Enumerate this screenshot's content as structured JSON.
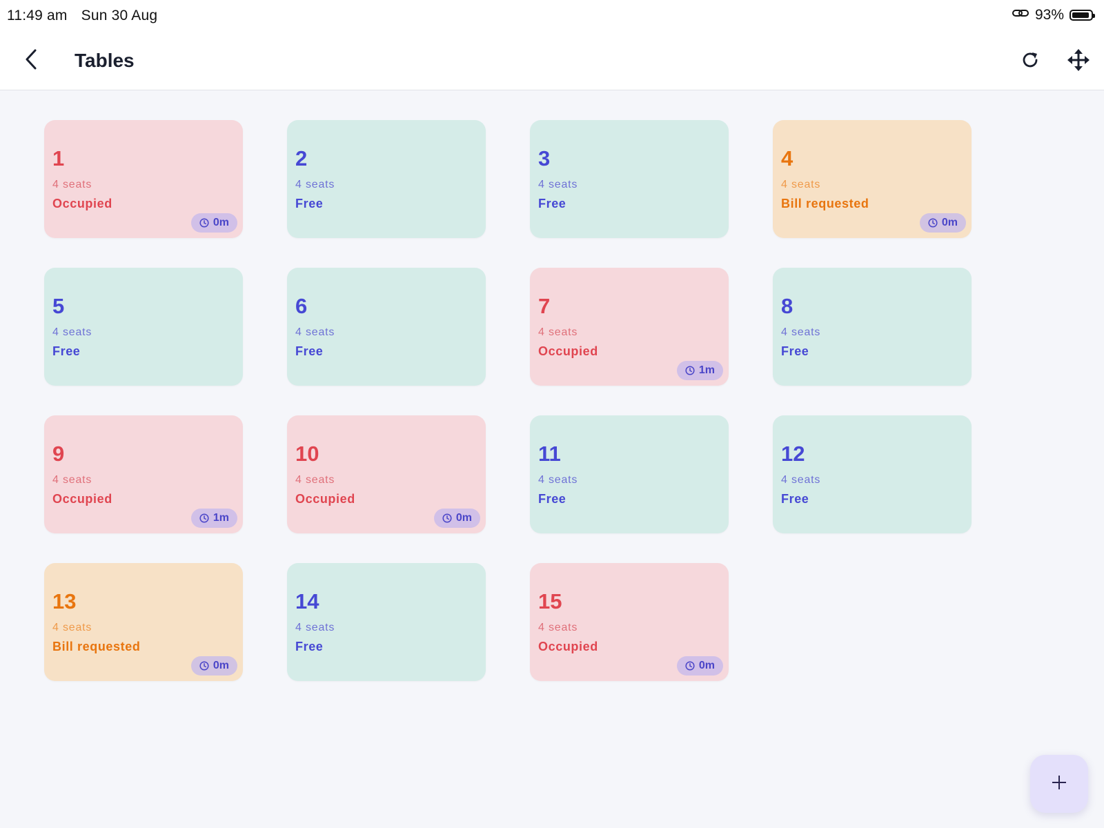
{
  "status_bar": {
    "time": "11:49 am",
    "date": "Sun 30 Aug",
    "battery": "93%",
    "battery_level": 0.93,
    "link_icon": "link-icon"
  },
  "header": {
    "title": "Tables",
    "back_icon": "chevron-left-icon",
    "refresh_icon": "refresh-icon",
    "move_icon": "move-arrows-icon"
  },
  "colors": {
    "occupied_bg": "#f6d8dc",
    "occupied_text": "#e04550",
    "free_bg": "#d5ece8",
    "free_text": "#4648d4",
    "bill_bg": "#f7e1c6",
    "bill_text": "#e8750f",
    "timer_bg": "#d2c8f0",
    "timer_text": "#4a45c8",
    "fab_bg": "#e4e0fb"
  },
  "tables": [
    {
      "number": "1",
      "seats": "4 seats",
      "status": "Occupied",
      "kind": "occupied",
      "timer": "0m"
    },
    {
      "number": "2",
      "seats": "4 seats",
      "status": "Free",
      "kind": "free",
      "timer": null
    },
    {
      "number": "3",
      "seats": "4 seats",
      "status": "Free",
      "kind": "free",
      "timer": null
    },
    {
      "number": "4",
      "seats": "4 seats",
      "status": "Bill requested",
      "kind": "bill",
      "timer": "0m"
    },
    {
      "number": "5",
      "seats": "4 seats",
      "status": "Free",
      "kind": "free",
      "timer": null
    },
    {
      "number": "6",
      "seats": "4 seats",
      "status": "Free",
      "kind": "free",
      "timer": null
    },
    {
      "number": "7",
      "seats": "4 seats",
      "status": "Occupied",
      "kind": "occupied",
      "timer": "1m"
    },
    {
      "number": "8",
      "seats": "4 seats",
      "status": "Free",
      "kind": "free",
      "timer": null
    },
    {
      "number": "9",
      "seats": "4 seats",
      "status": "Occupied",
      "kind": "occupied",
      "timer": "1m"
    },
    {
      "number": "10",
      "seats": "4 seats",
      "status": "Occupied",
      "kind": "occupied",
      "timer": "0m"
    },
    {
      "number": "11",
      "seats": "4 seats",
      "status": "Free",
      "kind": "free",
      "timer": null
    },
    {
      "number": "12",
      "seats": "4 seats",
      "status": "Free",
      "kind": "free",
      "timer": null
    },
    {
      "number": "13",
      "seats": "4 seats",
      "status": "Bill requested",
      "kind": "bill",
      "timer": "0m"
    },
    {
      "number": "14",
      "seats": "4 seats",
      "status": "Free",
      "kind": "free",
      "timer": null
    },
    {
      "number": "15",
      "seats": "4 seats",
      "status": "Occupied",
      "kind": "occupied",
      "timer": "0m"
    }
  ],
  "fab": {
    "label": "+",
    "icon": "plus-icon"
  }
}
